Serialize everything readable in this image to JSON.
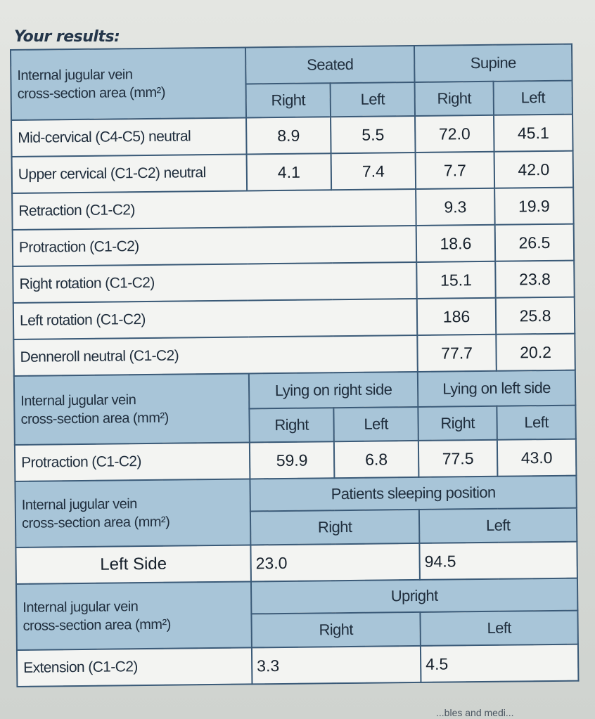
{
  "heading": "Your results:",
  "section1": {
    "label_line1": "Internal jugular vein",
    "label_line2": "cross-section area (mm²)",
    "group_seated": "Seated",
    "group_supine": "Supine",
    "sub_right": "Right",
    "sub_left": "Left",
    "rows": [
      {
        "label": "Mid-cervical (C4-C5) neutral",
        "seated_right": "8.9",
        "seated_left": "5.5",
        "supine_right": "72.0",
        "supine_left": "45.1"
      },
      {
        "label": "Upper cervical (C1-C2) neutral",
        "seated_right": "4.1",
        "seated_left": "7.4",
        "supine_right": "7.7",
        "supine_left": "42.0"
      },
      {
        "label": "Retraction (C1-C2)",
        "supine_right": "9.3",
        "supine_left": "19.9"
      },
      {
        "label": "Protraction (C1-C2)",
        "supine_right": "18.6",
        "supine_left": "26.5"
      },
      {
        "label": "Right rotation (C1-C2)",
        "supine_right": "15.1",
        "supine_left": "23.8"
      },
      {
        "label": "Left rotation (C1-C2)",
        "supine_right": "186",
        "supine_left": "25.8"
      },
      {
        "label": "Denneroll neutral (C1-C2)",
        "supine_right": "77.7",
        "supine_left": "20.2"
      }
    ]
  },
  "section2": {
    "label_line1": "Internal jugular vein",
    "label_line2": "cross-section area (mm²)",
    "group_right_side": "Lying on right side",
    "group_left_side": "Lying on left side",
    "sub_right": "Right",
    "sub_left": "Left",
    "row": {
      "label": "Protraction (C1-C2)",
      "rs_right": "59.9",
      "rs_left": "6.8",
      "ls_right": "77.5",
      "ls_left": "43.0"
    }
  },
  "section3": {
    "label_line1": "Internal jugular vein",
    "label_line2": "cross-section area (mm²)",
    "group": "Patients sleeping position",
    "sub_right": "Right",
    "sub_left": "Left",
    "row": {
      "label": "Left Side",
      "right": "23.0",
      "left": "94.5"
    }
  },
  "section4": {
    "label_line1": "Internal jugular vein",
    "label_line2": "cross-section area (mm²)",
    "group": "Upright",
    "sub_right": "Right",
    "sub_left": "Left",
    "row": {
      "label": "Extension (C1-C2)",
      "right": "3.3",
      "left": "4.5"
    }
  },
  "footer_fragment": "...bles and medi..."
}
